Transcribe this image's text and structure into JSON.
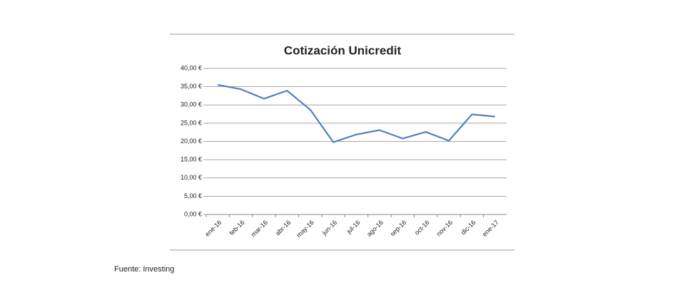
{
  "chart_data": {
    "type": "line",
    "title": "Cotización Unicredit",
    "source": "Fuente: Investing",
    "categories": [
      "ene-16",
      "feb-16",
      "mar-16",
      "abr-16",
      "may-16",
      "jun-16",
      "jul-16",
      "ago-16",
      "sep-16",
      "oct-16",
      "nov-16",
      "dic-16",
      "ene-17"
    ],
    "values": [
      35.5,
      34.3,
      31.7,
      33.9,
      28.7,
      19.8,
      21.9,
      23.1,
      20.8,
      22.6,
      20.2,
      27.4,
      26.8
    ],
    "color": "#4f81bd",
    "ylim": [
      0,
      40
    ],
    "yticks": [
      {
        "value": 0,
        "label": "0,00 €"
      },
      {
        "value": 5,
        "label": "5,00 €"
      },
      {
        "value": 10,
        "label": "10,00 €"
      },
      {
        "value": 15,
        "label": "15,00 €"
      },
      {
        "value": 20,
        "label": "20,00 €"
      },
      {
        "value": 25,
        "label": "25,00 €"
      },
      {
        "value": 30,
        "label": "30,00 €"
      },
      {
        "value": 35,
        "label": "35,00 €"
      },
      {
        "value": 40,
        "label": "40,00 €"
      }
    ],
    "grid": true
  }
}
